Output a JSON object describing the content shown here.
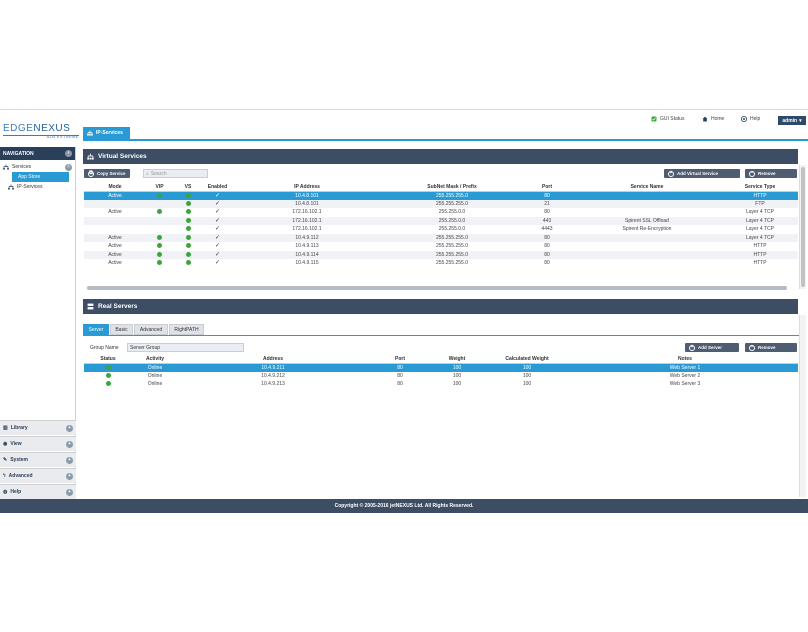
{
  "logo": {
    "part1": "EDGE",
    "part2": "NEXUS",
    "subtitle": "ALB EXTREME"
  },
  "topbar": {
    "gui_status": "GUI Status",
    "home": "Home",
    "help": "Help",
    "user": "admin"
  },
  "page_tab": "IP-Services",
  "sidebar": {
    "header": "NAVIGATION",
    "services": "Services",
    "app_store": "App Store",
    "ip_services": "IP-Services",
    "bottom": [
      "Library",
      "View",
      "System",
      "Advanced",
      "Help"
    ]
  },
  "virtual_services": {
    "title": "Virtual Services",
    "copy_button": "Copy Service",
    "search_placeholder": "Search",
    "add_button": "Add Virtual Service",
    "remove_button": "Remove",
    "columns": [
      "Mode",
      "VIP",
      "VS",
      "Enabled",
      "IP Address",
      "SubNet Mask / Prefix",
      "Port",
      "Service Name",
      "Service Type"
    ],
    "rows": [
      {
        "mode": "Active",
        "vip": true,
        "vs": true,
        "enabled": true,
        "ip": "10.4.8.101",
        "mask": "255.255.255.0",
        "port": "80",
        "name": "",
        "type": "HTTP"
      },
      {
        "mode": "",
        "vip": false,
        "vs": true,
        "enabled": true,
        "ip": "10.4.8.101",
        "mask": "255.255.255.0",
        "port": "21",
        "name": "",
        "type": "FTP"
      },
      {
        "mode": "Active",
        "vip": true,
        "vs": true,
        "enabled": true,
        "ip": "172.16.102.1",
        "mask": "255.255.0.0",
        "port": "80",
        "name": "",
        "type": "Layer 4 TCP"
      },
      {
        "mode": "",
        "vip": false,
        "vs": true,
        "enabled": true,
        "ip": "172.16.102.1",
        "mask": "255.255.0.0",
        "port": "443",
        "name": "Spirent SSL Offload",
        "type": "Layer 4 TCP"
      },
      {
        "mode": "",
        "vip": false,
        "vs": true,
        "enabled": true,
        "ip": "172.16.102.1",
        "mask": "255.255.0.0",
        "port": "4443",
        "name": "Spirent Re-Encryption",
        "type": "Layer 4 TCP"
      },
      {
        "mode": "Active",
        "vip": true,
        "vs": true,
        "enabled": true,
        "ip": "10.4.9.112",
        "mask": "255.255.255.0",
        "port": "80",
        "name": "",
        "type": "Layer 4 TCP"
      },
      {
        "mode": "Active",
        "vip": true,
        "vs": true,
        "enabled": true,
        "ip": "10.4.9.113",
        "mask": "255.255.255.0",
        "port": "80",
        "name": "",
        "type": "HTTP"
      },
      {
        "mode": "Active",
        "vip": true,
        "vs": true,
        "enabled": true,
        "ip": "10.4.9.114",
        "mask": "255.255.255.0",
        "port": "80",
        "name": "",
        "type": "HTTP"
      },
      {
        "mode": "Active",
        "vip": true,
        "vs": true,
        "enabled": true,
        "ip": "10.4.9.115",
        "mask": "255.255.255.0",
        "port": "80",
        "name": "",
        "type": "HTTP"
      }
    ]
  },
  "real_servers": {
    "title": "Real Servers",
    "tabs": [
      "Server",
      "Basic",
      "Advanced",
      "RightPATH"
    ],
    "group_label": "Group Name",
    "group_value": "Server Group",
    "add_button": "Add Server",
    "remove_button": "Remove",
    "columns": [
      "Status",
      "Activity",
      "Address",
      "Port",
      "Weight",
      "Calculated Weight",
      "Notes"
    ],
    "rows": [
      {
        "activity": "Online",
        "address": "10.4.9.211",
        "port": "80",
        "weight": "100",
        "calc": "100",
        "notes": "Web Server 1"
      },
      {
        "activity": "Online",
        "address": "10.4.9.212",
        "port": "80",
        "weight": "100",
        "calc": "100",
        "notes": "Web Server 2"
      },
      {
        "activity": "Online",
        "address": "10.4.9.213",
        "port": "80",
        "weight": "100",
        "calc": "100",
        "notes": "Web Server 3"
      }
    ]
  },
  "footer": "Copyright © 2005-2016 jetNEXUS Ltd. All Rights Reserved.",
  "colors": {
    "accent": "#2a9ad5",
    "header": "#3d4d63",
    "status_ok": "#3aa63a"
  }
}
